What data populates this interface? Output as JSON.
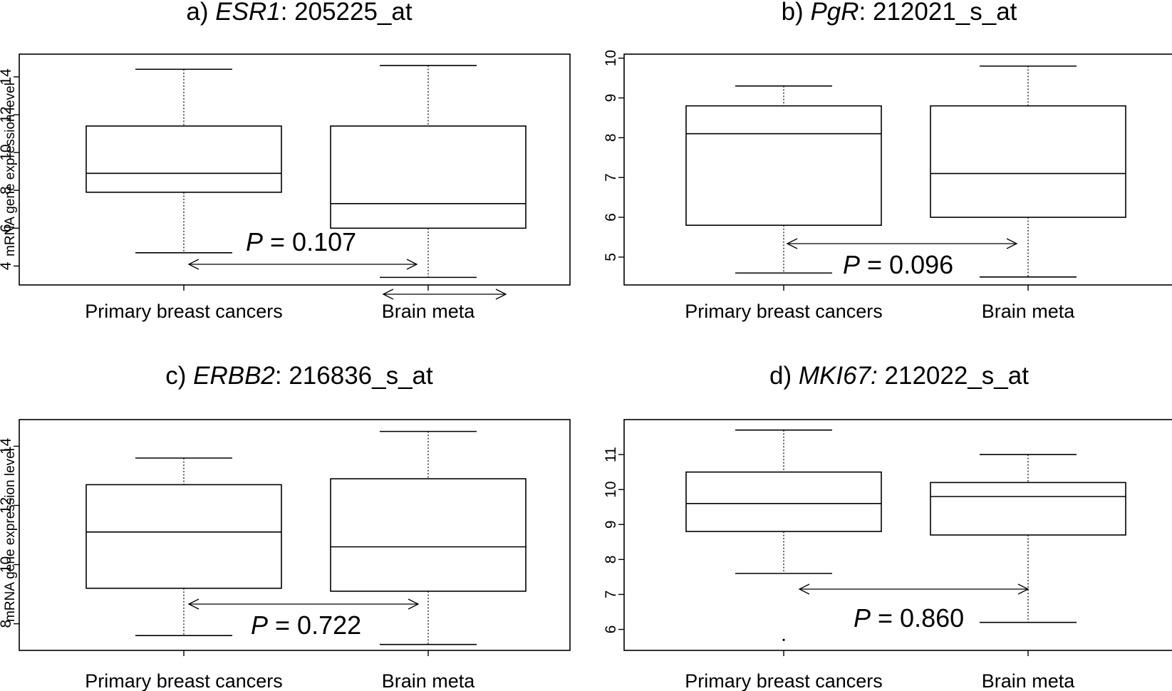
{
  "chart_data": [
    {
      "type": "box",
      "title_prefix": "a) ",
      "title_gene": "ESR1",
      "title_suffix": ": 205225_at",
      "ylabel": "mRNA gene expression level",
      "ylim": [
        3.0,
        15.2
      ],
      "yticks": [
        4,
        6,
        8,
        10,
        12,
        14
      ],
      "categories": [
        "Primary breast cancers",
        "Brain meta"
      ],
      "boxes": [
        {
          "min": 4.7,
          "q1": 7.9,
          "median": 8.9,
          "q3": 11.4,
          "max": 14.4
        },
        {
          "min": 3.4,
          "q1": 6.0,
          "median": 7.3,
          "q3": 11.4,
          "max": 14.6
        }
      ],
      "pvalue": "0.107",
      "p_italic": "P",
      "p_rest": " = 0.107",
      "outliers": []
    },
    {
      "type": "box",
      "title_prefix": "b) ",
      "title_gene": "PgR",
      "title_suffix": ": 212021_s_at",
      "ylabel": "",
      "ylim": [
        4.3,
        10.1
      ],
      "yticks": [
        5,
        6,
        7,
        8,
        9,
        10
      ],
      "categories": [
        "Primary breast cancers",
        "Brain meta"
      ],
      "boxes": [
        {
          "min": 4.6,
          "q1": 5.8,
          "median": 8.1,
          "q3": 8.8,
          "max": 9.3
        },
        {
          "min": 4.5,
          "q1": 6.0,
          "median": 7.1,
          "q3": 8.8,
          "max": 9.8
        }
      ],
      "pvalue": "0.096",
      "p_italic": "P",
      "p_rest": " = 0.096",
      "outliers": []
    },
    {
      "type": "box",
      "title_prefix": "c) ",
      "title_gene": "ERBB2",
      "title_suffix": ": 216836_s_at",
      "ylabel": "mRNA gene expression level",
      "ylim": [
        7.1,
        14.9
      ],
      "yticks": [
        8,
        10,
        12,
        14
      ],
      "categories": [
        "Primary breast cancers",
        "Brain meta"
      ],
      "boxes": [
        {
          "min": 7.6,
          "q1": 9.2,
          "median": 11.1,
          "q3": 12.7,
          "max": 13.6
        },
        {
          "min": 7.3,
          "q1": 9.1,
          "median": 10.6,
          "q3": 12.9,
          "max": 14.5
        }
      ],
      "pvalue": "0.722",
      "p_italic": "P",
      "p_rest": " = 0.722",
      "outliers": []
    },
    {
      "type": "box",
      "title_prefix": "d) ",
      "title_gene": "MKI67:",
      "title_suffix": " 212022_s_at",
      "ylabel": "",
      "ylim": [
        5.4,
        12.0
      ],
      "yticks": [
        6,
        7,
        8,
        9,
        10,
        11
      ],
      "categories": [
        "Primary breast cancers",
        "Brain meta"
      ],
      "boxes": [
        {
          "min": 7.6,
          "q1": 8.8,
          "median": 9.6,
          "q3": 10.5,
          "max": 11.7
        },
        {
          "min": 6.2,
          "q1": 8.7,
          "median": 9.8,
          "q3": 10.2,
          "max": 11.0
        }
      ],
      "pvalue": "0.860",
      "p_italic": "P",
      "p_rest": " = 0.860",
      "outliers": [
        {
          "group": 0,
          "value": 5.7
        }
      ]
    }
  ]
}
